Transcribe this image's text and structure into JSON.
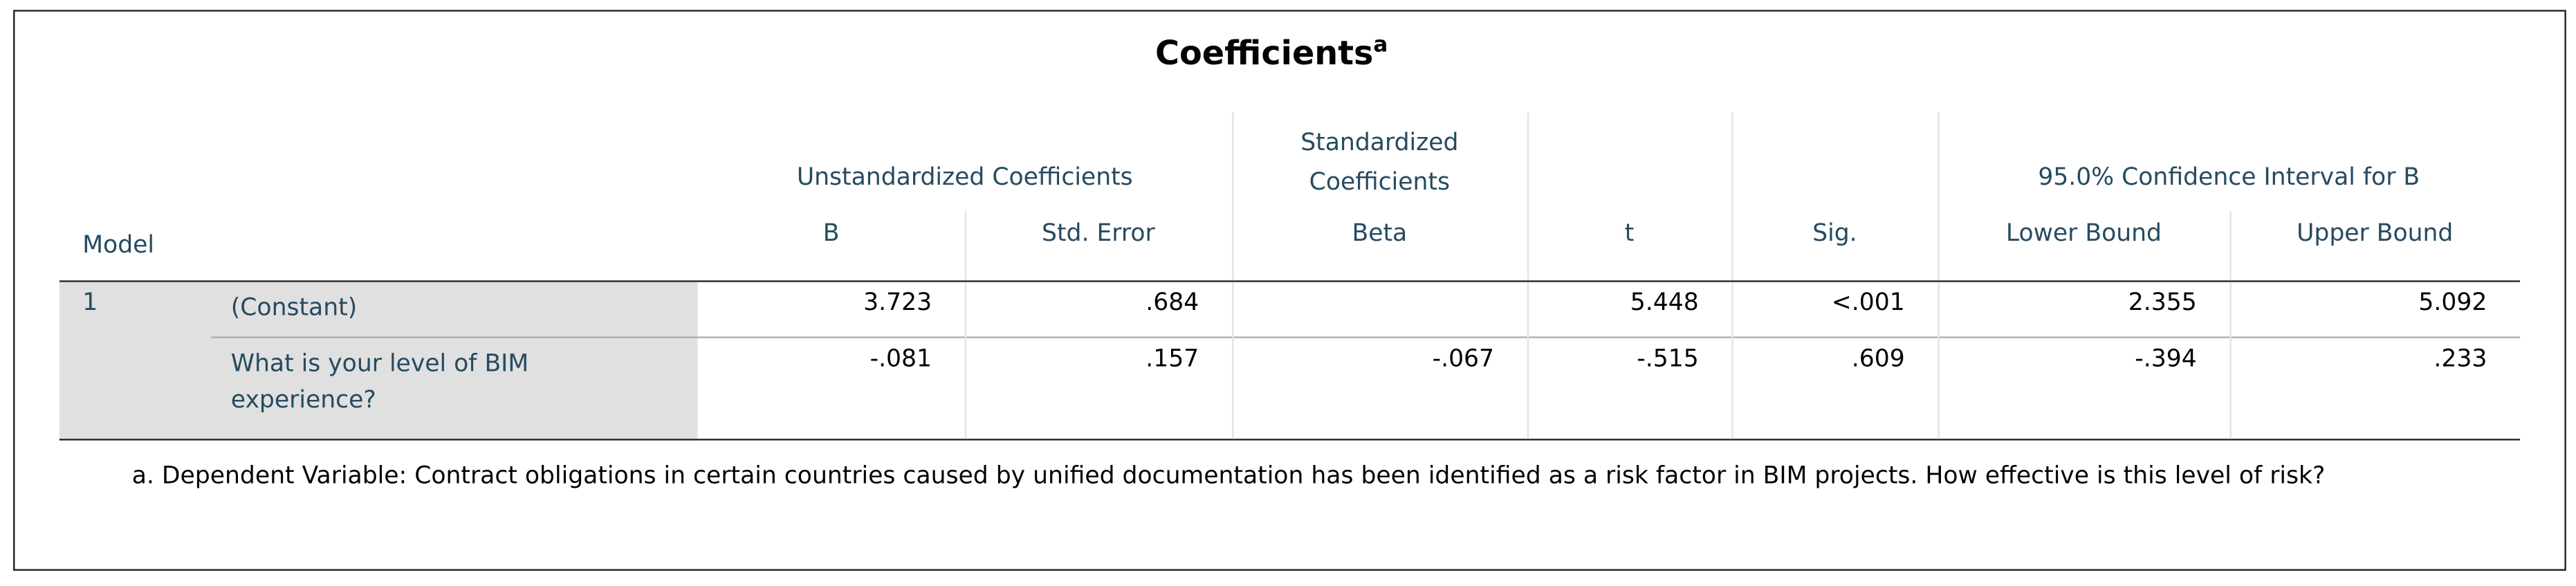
{
  "title": "Coefficients",
  "title_note": "a",
  "header": {
    "groups": [
      "Unstandardized Coefficients",
      "Standardized Coefficients",
      "95.0% Confidence Interval for B"
    ],
    "columns": [
      "Model",
      "B",
      "Std. Error",
      "Beta",
      "t",
      "Sig.",
      "Lower Bound",
      "Upper Bound"
    ]
  },
  "rows": [
    {
      "model": "1",
      "label": "(Constant)",
      "values": [
        "3.723",
        ".684",
        null,
        "5.448",
        "<.001",
        "2.355",
        "5.092"
      ]
    },
    {
      "model": null,
      "label": "What is your level of BIM experience?",
      "values": [
        "-.081",
        ".157",
        "-.067",
        "-.515",
        ".609",
        "-.394",
        ".233"
      ]
    }
  ],
  "footnote": "a. Dependent Variable: Contract obligations in certain countries caused by unified documentation has been identified as a risk factor in BIM projects. How effective is this level of risk?"
}
